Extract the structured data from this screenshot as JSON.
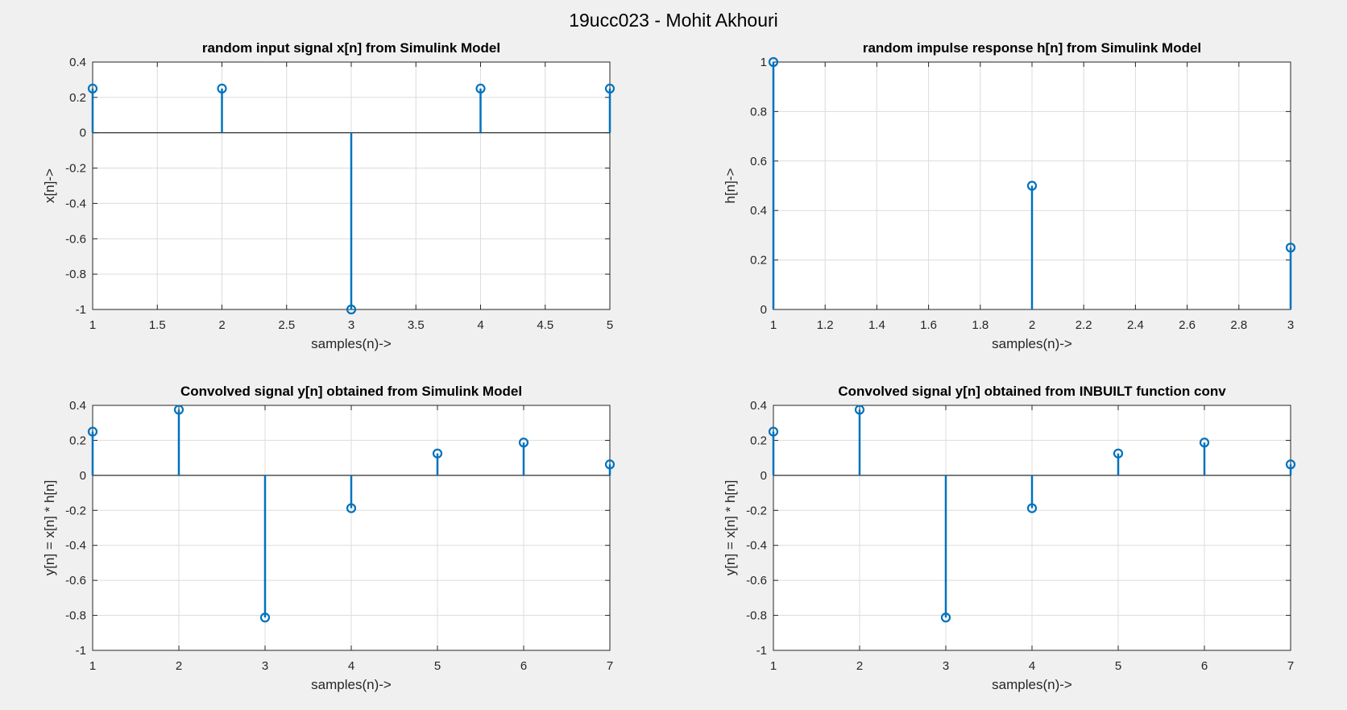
{
  "figure_title": "19ucc023 - Mohit Akhouri",
  "colors": {
    "stem": "#0072BD",
    "axes_bg": "#ffffff",
    "figure_bg": "#f0f0f0",
    "grid": "#dcdcdc"
  },
  "chart_data": [
    {
      "type": "stem",
      "title": "random input signal x[n] from Simulink Model",
      "xlabel": "samples(n)->",
      "ylabel": "x[n]->",
      "xlim": [
        1,
        5
      ],
      "ylim": [
        -1,
        0.4
      ],
      "xticks": [
        1,
        1.5,
        2,
        2.5,
        3,
        3.5,
        4,
        4.5,
        5
      ],
      "xtick_labels": [
        "1",
        "1.5",
        "2",
        "2.5",
        "3",
        "3.5",
        "4",
        "4.5",
        "5"
      ],
      "yticks": [
        -1,
        -0.8,
        -0.6,
        -0.4,
        -0.2,
        0,
        0.2,
        0.4
      ],
      "ytick_labels": [
        "-1",
        "-0.8",
        "-0.6",
        "-0.4",
        "-0.2",
        "0",
        "0.2",
        "0.4"
      ],
      "grid": true,
      "x": [
        1,
        2,
        3,
        4,
        5
      ],
      "values": [
        0.25,
        0.25,
        -1,
        0.25,
        0.25
      ]
    },
    {
      "type": "stem",
      "title": "random impulse response h[n] from Simulink Model",
      "xlabel": "samples(n)->",
      "ylabel": "h[n]->",
      "xlim": [
        1,
        3
      ],
      "ylim": [
        0,
        1
      ],
      "xticks": [
        1,
        1.2,
        1.4,
        1.6,
        1.8,
        2,
        2.2,
        2.4,
        2.6,
        2.8,
        3
      ],
      "xtick_labels": [
        "1",
        "1.2",
        "1.4",
        "1.6",
        "1.8",
        "2",
        "2.2",
        "2.4",
        "2.6",
        "2.8",
        "3"
      ],
      "yticks": [
        0,
        0.2,
        0.4,
        0.6,
        0.8,
        1
      ],
      "ytick_labels": [
        "0",
        "0.2",
        "0.4",
        "0.6",
        "0.8",
        "1"
      ],
      "grid": true,
      "x": [
        1,
        2,
        3
      ],
      "values": [
        1,
        0.5,
        0.25
      ]
    },
    {
      "type": "stem",
      "title": "Convolved signal y[n] obtained from Simulink Model",
      "xlabel": "samples(n)->",
      "ylabel": "y[n] = x[n] * h[n]",
      "xlim": [
        1,
        7
      ],
      "ylim": [
        -1,
        0.4
      ],
      "xticks": [
        1,
        2,
        3,
        4,
        5,
        6,
        7
      ],
      "xtick_labels": [
        "1",
        "2",
        "3",
        "4",
        "5",
        "6",
        "7"
      ],
      "yticks": [
        -1,
        -0.8,
        -0.6,
        -0.4,
        -0.2,
        0,
        0.2,
        0.4
      ],
      "ytick_labels": [
        "-1",
        "-0.8",
        "-0.6",
        "-0.4",
        "-0.2",
        "0",
        "0.2",
        "0.4"
      ],
      "grid": true,
      "x": [
        1,
        2,
        3,
        4,
        5,
        6,
        7
      ],
      "values": [
        0.25,
        0.375,
        -0.8125,
        -0.1875,
        0.125,
        0.1875,
        0.0625
      ]
    },
    {
      "type": "stem",
      "title": "Convolved signal y[n] obtained from INBUILT function conv",
      "xlabel": "samples(n)->",
      "ylabel": "y[n] = x[n] * h[n]",
      "xlim": [
        1,
        7
      ],
      "ylim": [
        -1,
        0.4
      ],
      "xticks": [
        1,
        2,
        3,
        4,
        5,
        6,
        7
      ],
      "xtick_labels": [
        "1",
        "2",
        "3",
        "4",
        "5",
        "6",
        "7"
      ],
      "yticks": [
        -1,
        -0.8,
        -0.6,
        -0.4,
        -0.2,
        0,
        0.2,
        0.4
      ],
      "ytick_labels": [
        "-1",
        "-0.8",
        "-0.6",
        "-0.4",
        "-0.2",
        "0",
        "0.2",
        "0.4"
      ],
      "grid": true,
      "x": [
        1,
        2,
        3,
        4,
        5,
        6,
        7
      ],
      "values": [
        0.25,
        0.375,
        -0.8125,
        -0.1875,
        0.125,
        0.1875,
        0.0625
      ]
    }
  ]
}
